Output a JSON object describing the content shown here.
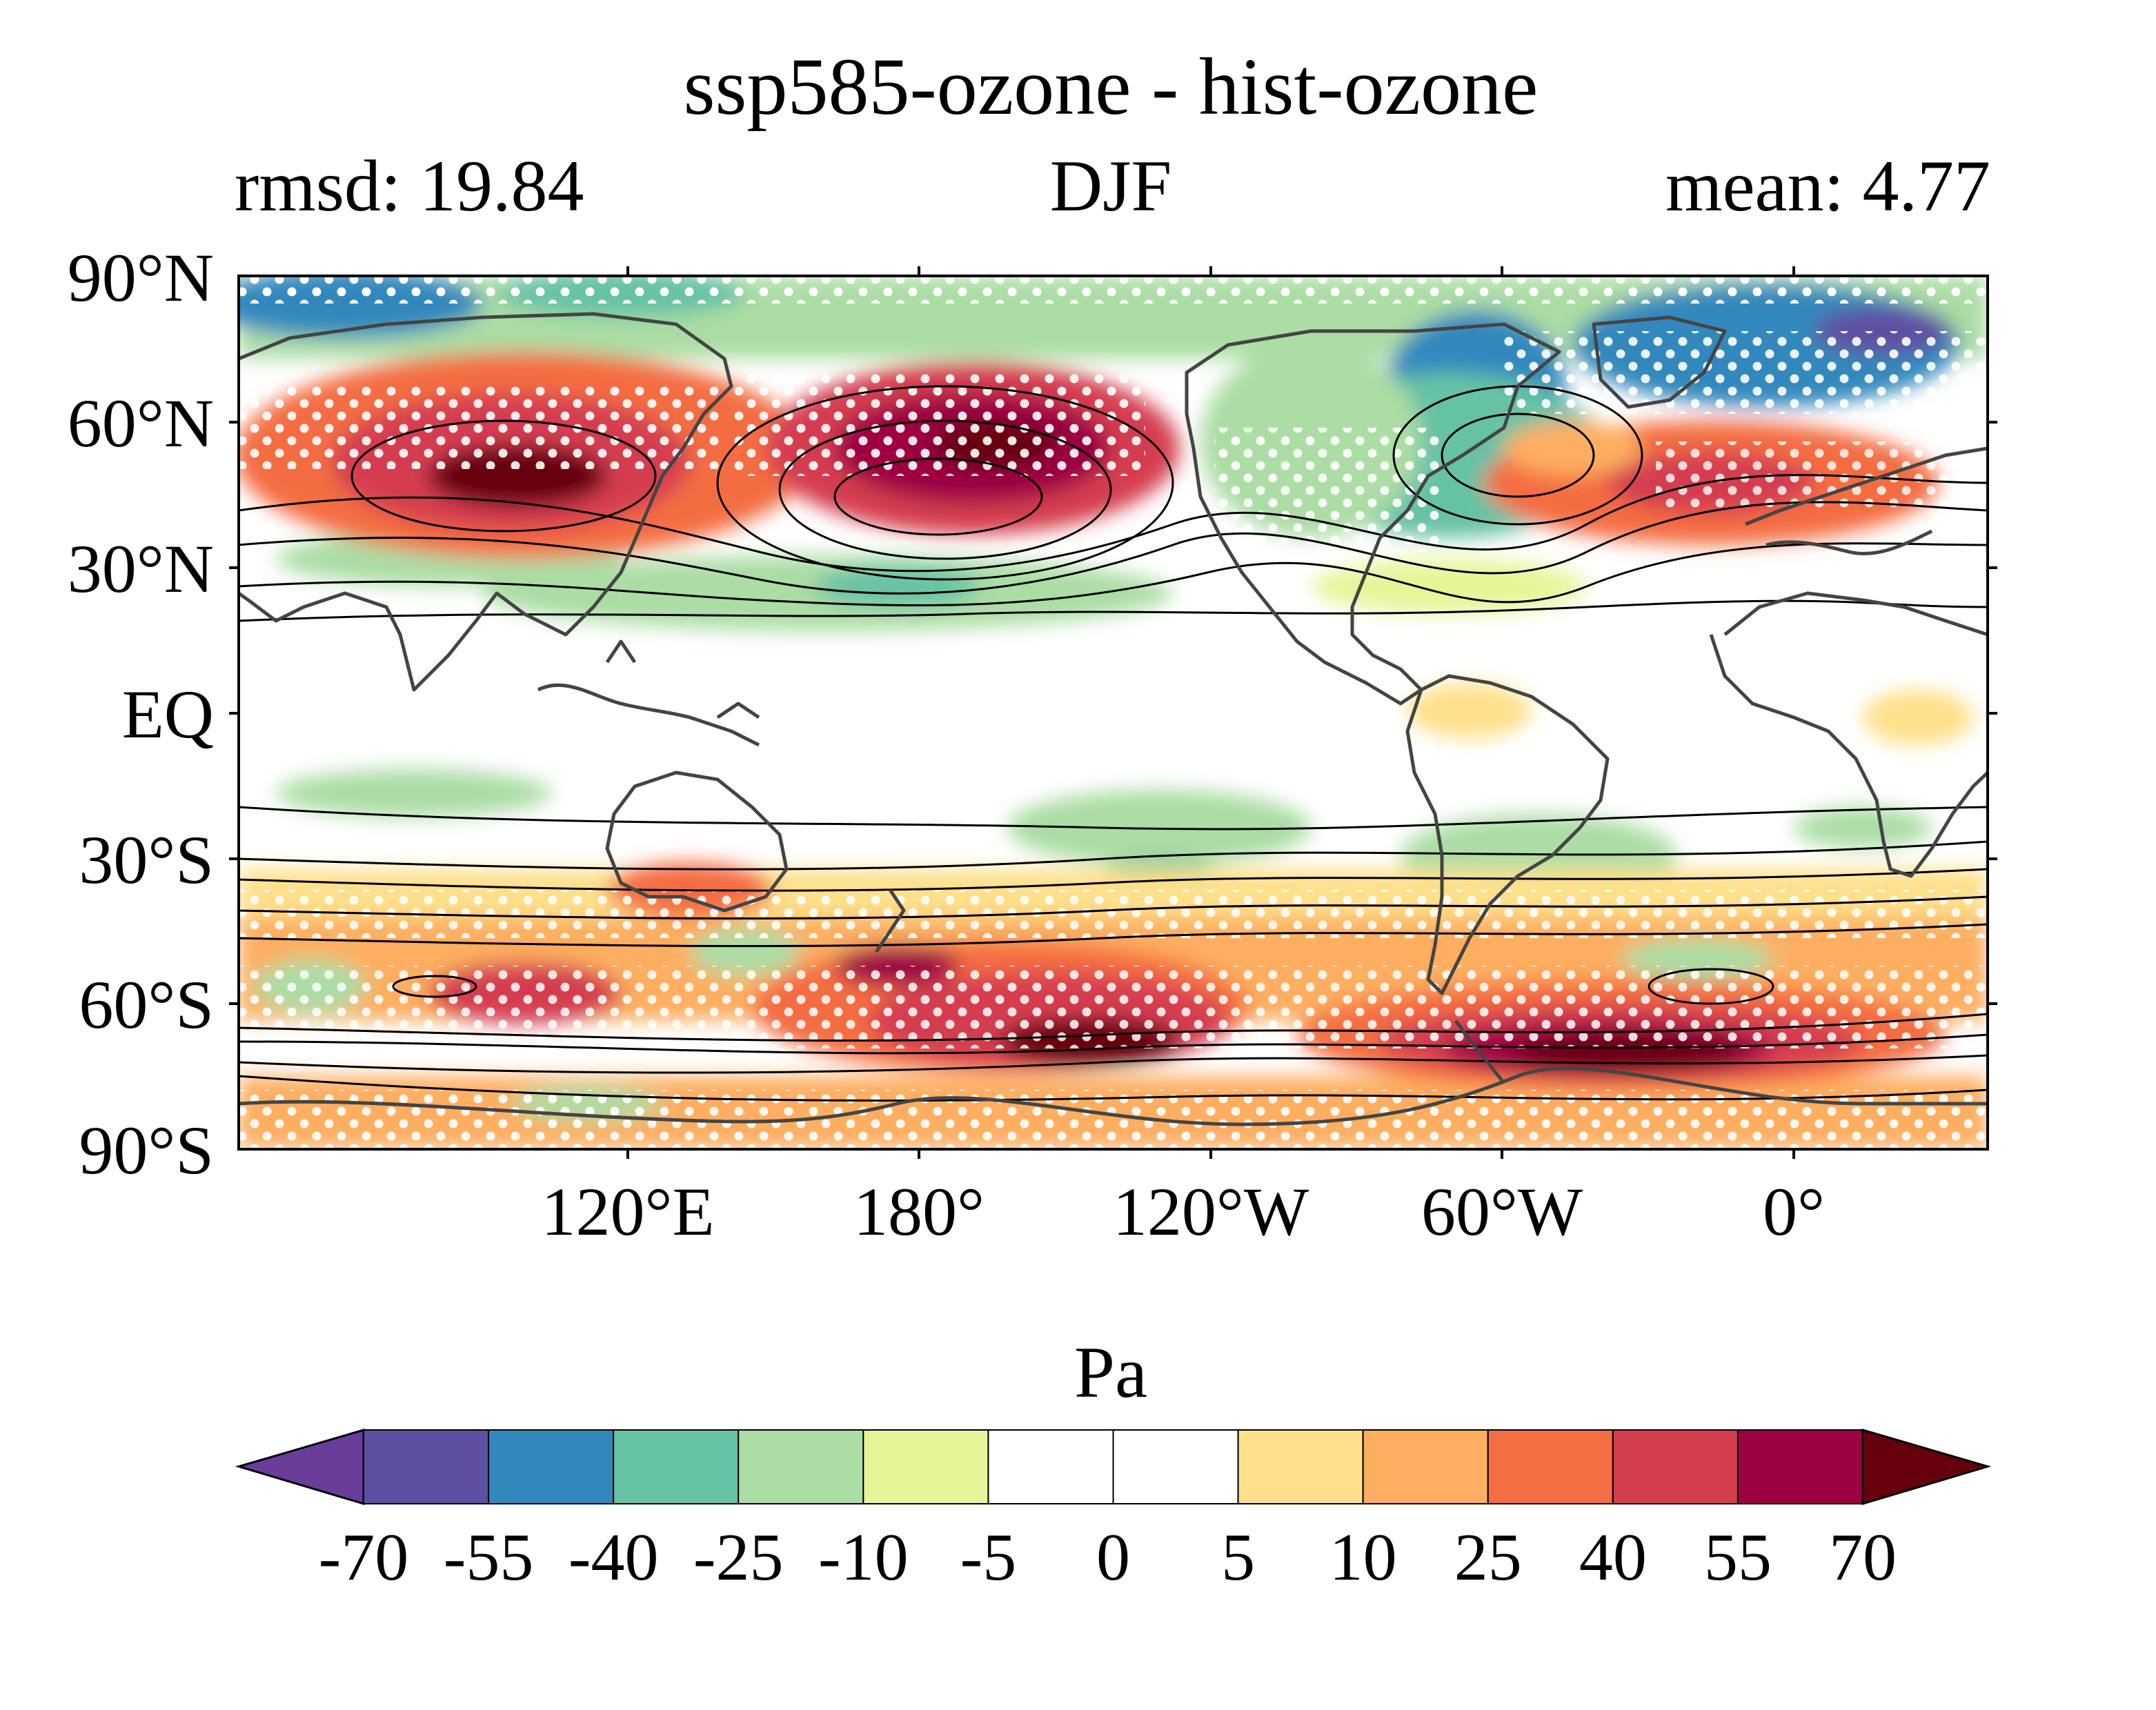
{
  "title": "ssp585-ozone - hist-ozone",
  "left_label": "rmsd: 19.84",
  "center_label": "DJF",
  "right_label": "mean: 4.77",
  "lat_labels": [
    "90°N",
    "60°N",
    "30°N",
    "EQ",
    "30°S",
    "60°S",
    "90°S"
  ],
  "lon_labels": [
    "120°E",
    "180°",
    "120°W",
    "60°W",
    "0°"
  ],
  "colorbar": {
    "unit": "Pa",
    "ticks": [
      "-70",
      "-55",
      "-40",
      "-25",
      "-10",
      "-5",
      "0",
      "5",
      "10",
      "25",
      "40",
      "55",
      "70"
    ],
    "colors": [
      "#5e4fa2",
      "#3288bd",
      "#66c2a5",
      "#abdda4",
      "#e6f598",
      "#ffffff",
      "#ffffff",
      "#fee08b",
      "#fdae61",
      "#f46d43",
      "#d53e4f",
      "#9e0142"
    ],
    "under_color": "#6a3d9a",
    "over_color": "#67000d"
  },
  "map": {
    "lon_range": [
      40,
      400
    ],
    "lat_range": [
      -90,
      90
    ],
    "stippling": "significant areas marked with white dots",
    "contours": "climatology shown as black contour lines",
    "coastline_color": "#444444"
  }
}
